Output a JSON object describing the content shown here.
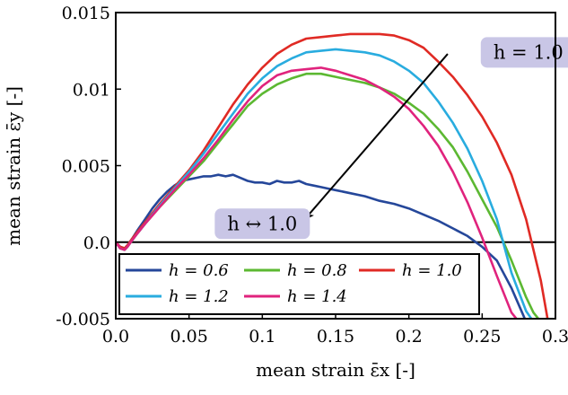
{
  "chart_data": {
    "type": "line",
    "xlabel": "mean strain ε̄x [-]",
    "ylabel": "mean strain ε̄y [-]",
    "xlim": [
      0.0,
      0.3
    ],
    "ylim": [
      -0.005,
      0.015
    ],
    "x_ticks": [
      {
        "value": 0.0,
        "label": "0.0"
      },
      {
        "value": 0.05,
        "label": "0.05"
      },
      {
        "value": 0.1,
        "label": "0.1"
      },
      {
        "value": 0.15,
        "label": "0.15"
      },
      {
        "value": 0.2,
        "label": "0.2"
      },
      {
        "value": 0.25,
        "label": "0.25"
      },
      {
        "value": 0.3,
        "label": "0.3"
      }
    ],
    "y_ticks": [
      {
        "value": -0.005,
        "label": "-0.005"
      },
      {
        "value": 0.0,
        "label": "0.0"
      },
      {
        "value": 0.005,
        "label": "0.005"
      },
      {
        "value": 0.01,
        "label": "0.01"
      },
      {
        "value": 0.015,
        "label": "0.015"
      }
    ],
    "grid": false,
    "zero_line": true,
    "legend": {
      "placement": "bottom-left",
      "entries": [
        "h = 0.6",
        "h = 0.8",
        "h = 1.0",
        "h = 1.2",
        "h = 1.4"
      ]
    },
    "annotations": [
      {
        "text": "h = 1.0",
        "x": 0.2815,
        "y": 0.0124
      },
      {
        "text": "h ↔ 1.0",
        "x": 0.1,
        "y": 0.0012
      }
    ],
    "arrow": {
      "from": [
        0.2265,
        0.0123
      ],
      "to": [
        0.129,
        0.0015
      ],
      "color": "#000000"
    },
    "annotation_box_color": "#c9c6e6",
    "series": [
      {
        "name": "h = 0.6",
        "color": "#25479a",
        "x": [
          0.0,
          0.003,
          0.006,
          0.008,
          0.011,
          0.015,
          0.02,
          0.025,
          0.03,
          0.035,
          0.04,
          0.045,
          0.05,
          0.055,
          0.06,
          0.065,
          0.07,
          0.075,
          0.08,
          0.085,
          0.09,
          0.095,
          0.1,
          0.105,
          0.11,
          0.115,
          0.12,
          0.125,
          0.13,
          0.135,
          0.14,
          0.145,
          0.15,
          0.16,
          0.17,
          0.18,
          0.19,
          0.2,
          0.21,
          0.22,
          0.23,
          0.24,
          0.25,
          0.26,
          0.27,
          0.275,
          0.28
        ],
        "y": [
          0.0,
          -0.0003,
          -0.0004,
          -0.0002,
          0.0002,
          0.0008,
          0.0015,
          0.0022,
          0.0028,
          0.0033,
          0.0037,
          0.004,
          0.0041,
          0.0042,
          0.0043,
          0.0043,
          0.0044,
          0.0043,
          0.0044,
          0.0042,
          0.004,
          0.0039,
          0.0039,
          0.0038,
          0.004,
          0.0039,
          0.0039,
          0.004,
          0.0038,
          0.0037,
          0.0036,
          0.0035,
          0.0034,
          0.0032,
          0.003,
          0.0027,
          0.0025,
          0.0022,
          0.0018,
          0.0014,
          0.0009,
          0.0004,
          -0.0003,
          -0.0012,
          -0.003,
          -0.0041,
          -0.0052
        ]
      },
      {
        "name": "h = 0.8",
        "color": "#5cb832",
        "x": [
          0.0,
          0.003,
          0.006,
          0.008,
          0.011,
          0.015,
          0.02,
          0.03,
          0.04,
          0.05,
          0.06,
          0.07,
          0.08,
          0.09,
          0.1,
          0.11,
          0.12,
          0.13,
          0.14,
          0.15,
          0.16,
          0.17,
          0.18,
          0.19,
          0.2,
          0.21,
          0.22,
          0.23,
          0.24,
          0.25,
          0.26,
          0.27,
          0.28,
          0.285,
          0.29
        ],
        "y": [
          0.0,
          -0.0004,
          -0.0005,
          -0.0003,
          0.0001,
          0.0006,
          0.0012,
          0.0023,
          0.0033,
          0.0043,
          0.0053,
          0.0065,
          0.0077,
          0.0089,
          0.0097,
          0.0103,
          0.0107,
          0.011,
          0.011,
          0.0108,
          0.0106,
          0.0104,
          0.0101,
          0.0097,
          0.0091,
          0.0084,
          0.0074,
          0.0062,
          0.0046,
          0.0028,
          0.001,
          -0.0012,
          -0.0036,
          -0.0046,
          -0.0052
        ]
      },
      {
        "name": "h = 1.0",
        "color": "#e02a24",
        "x": [
          0.0,
          0.003,
          0.006,
          0.008,
          0.011,
          0.015,
          0.02,
          0.03,
          0.04,
          0.05,
          0.06,
          0.07,
          0.08,
          0.09,
          0.1,
          0.11,
          0.12,
          0.13,
          0.14,
          0.15,
          0.16,
          0.17,
          0.18,
          0.19,
          0.2,
          0.21,
          0.22,
          0.23,
          0.24,
          0.25,
          0.26,
          0.27,
          0.28,
          0.29,
          0.295
        ],
        "y": [
          0.0,
          -0.0003,
          -0.0004,
          -0.0002,
          0.0002,
          0.0007,
          0.0013,
          0.0025,
          0.0036,
          0.0047,
          0.006,
          0.0075,
          0.009,
          0.0103,
          0.0114,
          0.0123,
          0.0129,
          0.0133,
          0.0134,
          0.0135,
          0.0136,
          0.0136,
          0.0136,
          0.0135,
          0.0132,
          0.0127,
          0.0118,
          0.0108,
          0.0096,
          0.0082,
          0.0065,
          0.0044,
          0.0015,
          -0.0025,
          -0.0052
        ]
      },
      {
        "name": "h = 1.2",
        "color": "#29acdf",
        "x": [
          0.0,
          0.003,
          0.006,
          0.008,
          0.011,
          0.015,
          0.02,
          0.03,
          0.04,
          0.05,
          0.06,
          0.07,
          0.08,
          0.09,
          0.1,
          0.11,
          0.12,
          0.13,
          0.14,
          0.15,
          0.16,
          0.17,
          0.18,
          0.19,
          0.2,
          0.21,
          0.22,
          0.23,
          0.24,
          0.25,
          0.26,
          0.27,
          0.28,
          0.285
        ],
        "y": [
          0.0,
          -0.0004,
          -0.0005,
          -0.0003,
          0.0001,
          0.0006,
          0.0012,
          0.0024,
          0.0035,
          0.0046,
          0.0058,
          0.0071,
          0.0084,
          0.0097,
          0.0107,
          0.0115,
          0.012,
          0.0124,
          0.0125,
          0.0126,
          0.0125,
          0.0124,
          0.0122,
          0.0118,
          0.0112,
          0.0104,
          0.0092,
          0.0078,
          0.0061,
          0.004,
          0.0015,
          -0.002,
          -0.0045,
          -0.0052
        ]
      },
      {
        "name": "h = 1.4",
        "color": "#e0237d",
        "x": [
          0.0,
          0.003,
          0.006,
          0.008,
          0.011,
          0.015,
          0.02,
          0.03,
          0.04,
          0.05,
          0.06,
          0.07,
          0.08,
          0.09,
          0.1,
          0.11,
          0.12,
          0.13,
          0.14,
          0.15,
          0.16,
          0.17,
          0.18,
          0.19,
          0.2,
          0.21,
          0.22,
          0.23,
          0.24,
          0.25,
          0.26,
          0.27,
          0.275,
          0.28
        ],
        "y": [
          0.0,
          -0.0004,
          -0.0005,
          -0.0003,
          0.0001,
          0.0006,
          0.0012,
          0.0023,
          0.0034,
          0.0044,
          0.0055,
          0.0067,
          0.008,
          0.0092,
          0.0102,
          0.0109,
          0.0112,
          0.0113,
          0.0114,
          0.0112,
          0.0109,
          0.0106,
          0.0101,
          0.0095,
          0.0087,
          0.0076,
          0.0063,
          0.0046,
          0.0026,
          0.0003,
          -0.0022,
          -0.0046,
          -0.0052,
          -0.0056
        ]
      }
    ]
  }
}
